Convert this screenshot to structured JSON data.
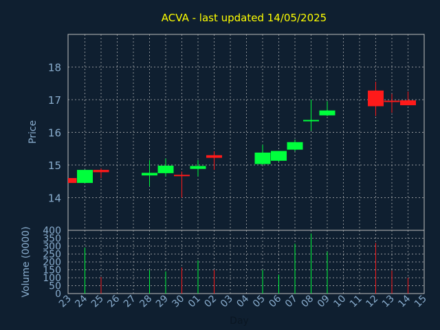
{
  "chart_data": {
    "type": "candlestick",
    "title": "ACVA - last updated 14/05/2025",
    "price_panel": {
      "ylabel": "Price",
      "ylim": [
        13,
        19
      ],
      "yticks": [
        14,
        15,
        16,
        17,
        18
      ],
      "grid": true
    },
    "volume_panel": {
      "ylabel": "Volume (0000)",
      "ylim": [
        0,
        400
      ],
      "yticks": [
        0,
        50,
        100,
        150,
        200,
        250,
        300,
        350,
        400
      ],
      "grid": true
    },
    "xlabel": "Day",
    "xticks": [
      "23",
      "24",
      "25",
      "26",
      "27",
      "28",
      "29",
      "30",
      "01",
      "02",
      "03",
      "04",
      "05",
      "06",
      "07",
      "08",
      "09",
      "10",
      "11",
      "12",
      "13",
      "14",
      "15"
    ],
    "candles": [
      {
        "x": 0,
        "open": 14.6,
        "close": 14.45,
        "high": 14.6,
        "low": 14.45,
        "volume": 0
      },
      {
        "x": 1,
        "open": 14.45,
        "close": 14.85,
        "high": 14.85,
        "low": 14.45,
        "volume": 290
      },
      {
        "x": 2,
        "open": 14.85,
        "close": 14.78,
        "high": 14.9,
        "low": 14.6,
        "volume": 105
      },
      {
        "x": 5,
        "open": 14.68,
        "close": 14.76,
        "high": 15.15,
        "low": 14.35,
        "volume": 150
      },
      {
        "x": 6,
        "open": 14.75,
        "close": 14.98,
        "high": 15.2,
        "low": 14.65,
        "volume": 140
      },
      {
        "x": 7,
        "open": 14.7,
        "close": 14.67,
        "high": 14.8,
        "low": 14.0,
        "volume": 165
      },
      {
        "x": 8,
        "open": 14.88,
        "close": 14.97,
        "high": 15.15,
        "low": 14.65,
        "volume": 210
      },
      {
        "x": 9,
        "open": 15.3,
        "close": 15.22,
        "high": 15.42,
        "low": 14.85,
        "volume": 150
      },
      {
        "x": 12,
        "open": 15.03,
        "close": 15.38,
        "high": 15.62,
        "low": 15.0,
        "volume": 150
      },
      {
        "x": 13,
        "open": 15.13,
        "close": 15.43,
        "high": 15.43,
        "low": 15.1,
        "volume": 120
      },
      {
        "x": 14,
        "open": 15.47,
        "close": 15.7,
        "high": 15.78,
        "low": 15.42,
        "volume": 315
      },
      {
        "x": 15,
        "open": 16.35,
        "close": 16.38,
        "high": 17.0,
        "low": 16.05,
        "volume": 380
      },
      {
        "x": 16,
        "open": 16.52,
        "close": 16.67,
        "high": 16.95,
        "low": 16.5,
        "volume": 265
      },
      {
        "x": 19,
        "open": 17.28,
        "close": 16.8,
        "high": 17.55,
        "low": 16.5,
        "volume": 320
      },
      {
        "x": 20,
        "open": 16.97,
        "close": 16.93,
        "high": 17.18,
        "low": 16.6,
        "volume": 145
      },
      {
        "x": 21,
        "open": 16.98,
        "close": 16.83,
        "high": 17.25,
        "low": 16.83,
        "volume": 100
      }
    ],
    "colors": {
      "background": "#0f1f30",
      "axis": "#c0c0c0",
      "grid": "#c0c0c0",
      "title": "#ffff00",
      "label": "#8aaecf",
      "up": "#00ff3c",
      "down": "#ff1a1a"
    }
  }
}
